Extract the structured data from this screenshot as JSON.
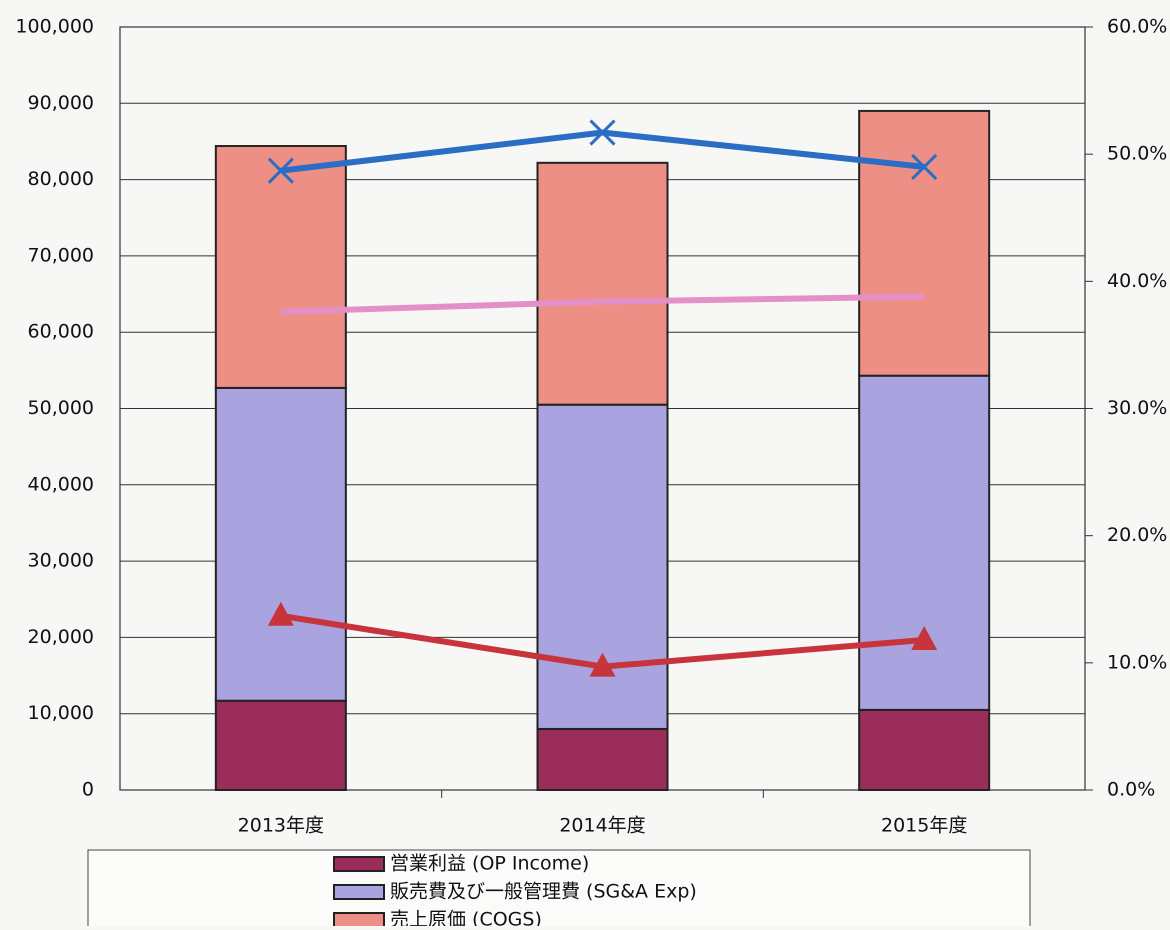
{
  "chart_data": {
    "type": "bar",
    "categories": [
      "2013年度",
      "2014年度",
      "2015年度"
    ],
    "stacked": true,
    "series": [
      {
        "name": "営業利益 (OP Income)",
        "color": "#9b2d5a",
        "values": [
          11700,
          8000,
          10500
        ]
      },
      {
        "name": "販売費及び一般管理費 (SG&A Exp)",
        "color": "#a9a3e0",
        "values": [
          41000,
          42500,
          43800
        ]
      },
      {
        "name": "売上原価 (COGS)",
        "color": "#ee8f85",
        "values": [
          31700,
          31700,
          34700
        ]
      },
      {
        "type": "line",
        "axis": "y2",
        "color": "#2b6cc4",
        "marker": "x",
        "values": [
          48.7,
          51.7,
          49.0
        ]
      },
      {
        "type": "line",
        "axis": "y2",
        "color": "#e48fc8",
        "marker": "none",
        "values": [
          37.6,
          38.4,
          38.8
        ]
      },
      {
        "type": "line",
        "axis": "y2",
        "color": "#c8343c",
        "marker": "triangle",
        "values": [
          13.7,
          9.7,
          11.8
        ]
      }
    ],
    "ylim": [
      0,
      100000
    ],
    "yticks": [
      0,
      {
        "value": 10000,
        "label": "10,000"
      },
      {
        "value": 20000,
        "label": "20,000"
      },
      {
        "value": 30000,
        "label": "30,000"
      },
      {
        "value": 40000,
        "label": "40,000"
      },
      {
        "value": 50000,
        "label": "50,000"
      },
      {
        "value": 60000,
        "label": "60,000"
      },
      {
        "value": 70000,
        "label": "70,000"
      },
      {
        "value": 80000,
        "label": "80,000"
      },
      {
        "value": 90000,
        "label": "90,000"
      },
      {
        "value": 100000,
        "label": "100,000"
      }
    ],
    "y2lim": [
      0,
      60
    ],
    "y2ticks": [
      {
        "value": 0,
        "label": "0.0%"
      },
      {
        "value": 10,
        "label": "10.0%"
      },
      {
        "value": 20,
        "label": "20.0%"
      },
      {
        "value": 30,
        "label": "30.0%"
      },
      {
        "value": 40,
        "label": "40.0%"
      },
      {
        "value": 50,
        "label": "50.0%"
      },
      {
        "value": 60,
        "label": "60.0%"
      }
    ],
    "grid": true,
    "legend": "bottom"
  }
}
